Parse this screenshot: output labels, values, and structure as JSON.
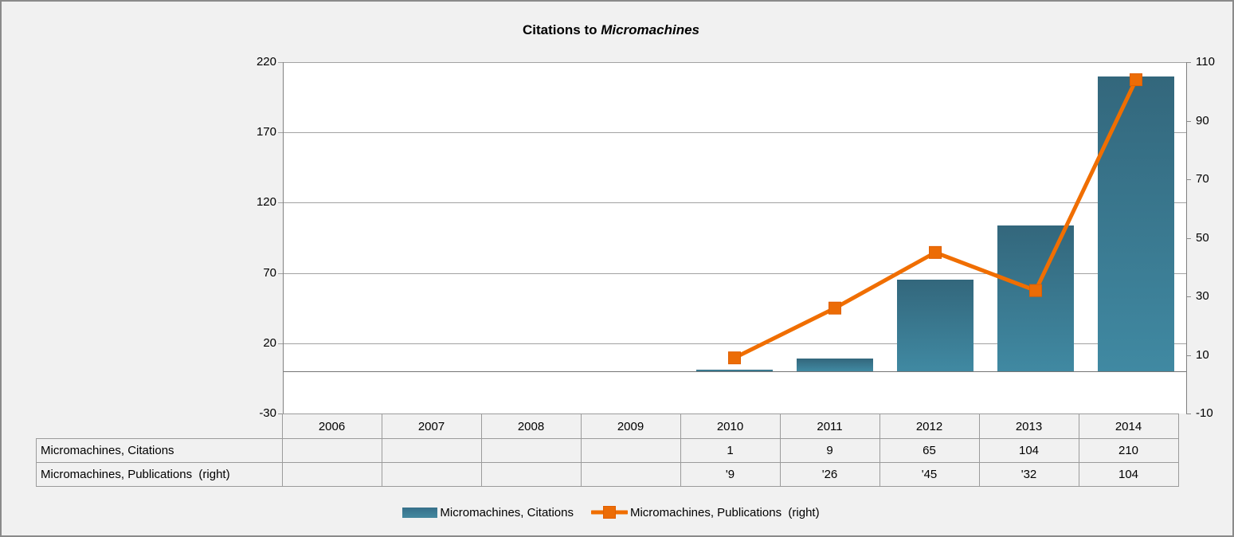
{
  "title": {
    "prefix": "Citations to ",
    "italic": "Micromachines"
  },
  "chart_data": {
    "type": "combo",
    "title": "Citations to Micromachines",
    "categories": [
      "2006",
      "2007",
      "2008",
      "2009",
      "2010",
      "2011",
      "2012",
      "2013",
      "2014"
    ],
    "series": [
      {
        "name": "Micromachines, Citations",
        "type": "bar",
        "axis": "left",
        "values": [
          null,
          null,
          null,
          null,
          1,
          9,
          65,
          104,
          210
        ],
        "table_labels": [
          "",
          "",
          "",
          "",
          "1",
          "9",
          "65",
          "104",
          "210"
        ]
      },
      {
        "name": "Micromachines, Publications  (right)",
        "type": "line",
        "axis": "right",
        "values": [
          null,
          null,
          null,
          null,
          9,
          26,
          45,
          32,
          104
        ],
        "table_labels": [
          "",
          "",
          "",
          "",
          "'9",
          "'26",
          "'45",
          "'32",
          "104"
        ]
      }
    ],
    "left_axis": {
      "min": -30,
      "max": 220,
      "step": 50,
      "ticks": [
        220,
        170,
        120,
        70,
        20,
        -30
      ]
    },
    "right_axis": {
      "min": -10,
      "max": 110,
      "step": 20,
      "ticks": [
        110,
        90,
        70,
        50,
        30,
        10,
        -10
      ]
    },
    "grid": "horizontal-left-axis",
    "legend_position": "bottom",
    "colors": {
      "bar_top": "#33677c",
      "bar_bottom": "#4089a2",
      "line": "#f06e00",
      "marker_fill": "#ec6c06",
      "marker_stroke": "#e05f00",
      "plot_bg": "#ffffff",
      "page_bg": "#f1f1f1",
      "gridline": "#a2a2a2"
    }
  }
}
